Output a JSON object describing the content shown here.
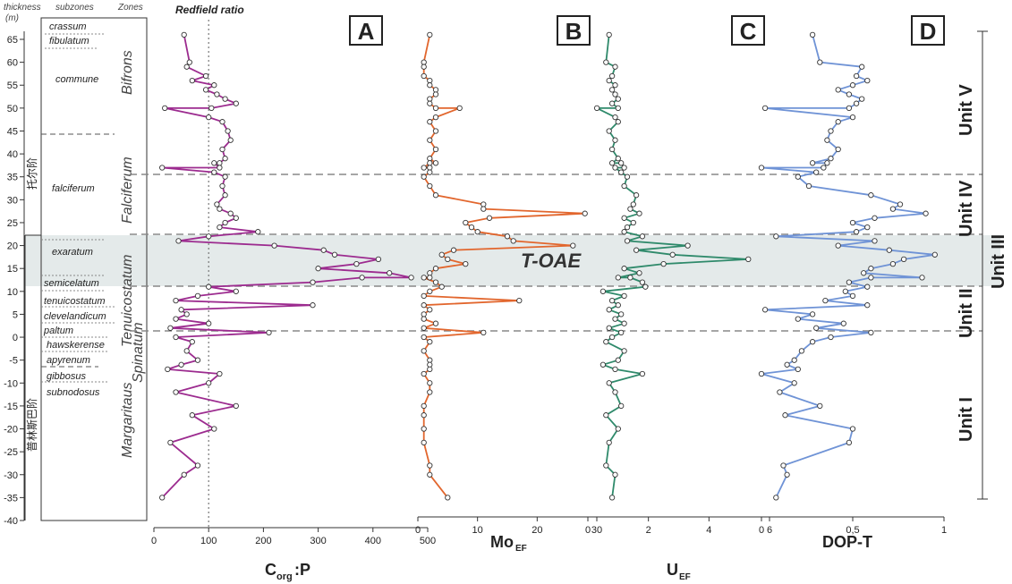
{
  "header": {
    "thickness": "thickness",
    "thickness_unit": "(m)",
    "subzones": "subzones",
    "zones": "Zones",
    "redfield": "Redfield ratio"
  },
  "stages": [
    {
      "label": "托尔阶"
    },
    {
      "label": "普林斯巴阶"
    }
  ],
  "zones": [
    {
      "label": "Bifrons"
    },
    {
      "label": "Falciferum"
    },
    {
      "label": "Tenuicostatum"
    },
    {
      "label": "Spinatum"
    },
    {
      "label": "Margaritaus"
    }
  ],
  "subzones": [
    {
      "label": "crassum"
    },
    {
      "label": "fibulatum"
    },
    {
      "label": "commune"
    },
    {
      "label": "falciferum"
    },
    {
      "label": "exaratum"
    },
    {
      "label": "semicelatum"
    },
    {
      "label": "tenuicostatum"
    },
    {
      "label": "clevelandicum"
    },
    {
      "label": "paltum"
    },
    {
      "label": "hawskerense"
    },
    {
      "label": "apyrenum"
    },
    {
      "label": "gibbosus"
    },
    {
      "label": "subnodosus"
    }
  ],
  "depth_ticks": [
    "65",
    "60",
    "55",
    "50",
    "45",
    "40",
    "35",
    "30",
    "25",
    "20",
    "15",
    "10",
    "5",
    "0",
    "-5",
    "-10",
    "-15",
    "-20",
    "-25",
    "-30",
    "-35",
    "-40"
  ],
  "toae_label": "T-OAE",
  "units": [
    {
      "label": "Unit V"
    },
    {
      "label": "Unit IV"
    },
    {
      "label": "Unit III"
    },
    {
      "label": "Unit II"
    },
    {
      "label": "Unit I"
    }
  ],
  "chart_data": [
    {
      "type": "line",
      "panel": "A",
      "xlabel": "Corg:P",
      "xlabel_main": "C",
      "xlabel_sub": "org",
      "xlabel_tail": ":P",
      "xticks": [
        "0",
        "100",
        "200",
        "300",
        "400",
        "500"
      ],
      "xlim": [
        0,
        500
      ],
      "ylim": [
        -40,
        68
      ],
      "reference_line": {
        "value": 100,
        "label": "Redfield ratio"
      },
      "color": "#9c2b8f",
      "x": [
        55,
        65,
        60,
        95,
        70,
        110,
        95,
        115,
        130,
        150,
        105,
        20,
        100,
        125,
        135,
        140,
        125,
        130,
        120,
        110,
        120,
        15,
        110,
        130,
        125,
        130,
        115,
        120,
        140,
        150,
        130,
        120,
        190,
        100,
        45,
        220,
        310,
        330,
        410,
        370,
        300,
        430,
        470,
        380,
        290,
        100,
        150,
        80,
        40,
        290,
        50,
        60,
        40,
        100,
        30,
        210,
        40,
        70,
        60,
        80,
        50,
        25,
        120,
        100,
        40,
        150,
        70,
        110,
        30,
        80,
        55,
        15
      ],
      "y": [
        66,
        60,
        59,
        57,
        56,
        55,
        54,
        53,
        52,
        51,
        50,
        50,
        48,
        47,
        45,
        43,
        41,
        39,
        38,
        38,
        37,
        37,
        36,
        35,
        33,
        31,
        29,
        28,
        27,
        26,
        25,
        24,
        23,
        22,
        21,
        20,
        19,
        18,
        17,
        16,
        15,
        14,
        13,
        13,
        12,
        11,
        10,
        9,
        8,
        7,
        6,
        5,
        4,
        3,
        2,
        1,
        0,
        -1,
        -3,
        -5,
        -6,
        -7,
        -8,
        -10,
        -12,
        -15,
        -17,
        -20,
        -23,
        -28,
        -30,
        -35
      ]
    },
    {
      "type": "line",
      "panel": "B",
      "xlabel": "MoEF",
      "xlabel_main": "Mo",
      "xlabel_sub": "EF",
      "xticks": [
        "0",
        "10",
        "20",
        "30"
      ],
      "xlim": [
        0,
        30
      ],
      "ylim": [
        -40,
        68
      ],
      "color": "#e2662d",
      "x": [
        2,
        1,
        1,
        1,
        2,
        2,
        3,
        3,
        2,
        2,
        3,
        7,
        3,
        2,
        3,
        2,
        3,
        2,
        3,
        2,
        1,
        2,
        2,
        1,
        2,
        3,
        11,
        11,
        28,
        12,
        8,
        9,
        10,
        15,
        16,
        26,
        6,
        4,
        5,
        8,
        3,
        2,
        2,
        1,
        3,
        4,
        2,
        1,
        17,
        1,
        2,
        1,
        1,
        3,
        1,
        11,
        1,
        2,
        1,
        2,
        2,
        2,
        1,
        2,
        2,
        1,
        1,
        1,
        1,
        2,
        2,
        5
      ],
      "y": [
        66,
        60,
        59,
        57,
        56,
        55,
        54,
        53,
        52,
        51,
        50,
        50,
        48,
        47,
        45,
        43,
        41,
        39,
        38,
        38,
        37,
        37,
        36,
        35,
        33,
        31,
        29,
        28,
        27,
        26,
        25,
        24,
        23,
        22,
        21,
        20,
        19,
        18,
        17,
        16,
        15,
        14,
        13,
        13,
        12,
        11,
        10,
        9,
        8,
        7,
        6,
        5,
        4,
        3,
        2,
        1,
        0,
        -1,
        -3,
        -5,
        -6,
        -7,
        -8,
        -10,
        -12,
        -15,
        -17,
        -20,
        -23,
        -28,
        -30,
        -35
      ]
    },
    {
      "type": "line",
      "panel": "C",
      "xlabel": "UEF",
      "xlabel_main": "U",
      "xlabel_sub": "EF",
      "xticks": [
        "0",
        "2",
        "4",
        "6"
      ],
      "xlim": [
        0,
        6
      ],
      "ylim": [
        -40,
        68
      ],
      "color": "#2f8a6b",
      "x": [
        0.7,
        0.6,
        0.9,
        0.8,
        0.7,
        0.9,
        0.8,
        0.9,
        1.0,
        0.8,
        1.0,
        0.3,
        0.9,
        1.0,
        0.7,
        0.9,
        0.8,
        1.0,
        0.8,
        1.1,
        1.2,
        0.9,
        1.1,
        1.3,
        1.2,
        1.6,
        1.5,
        1.4,
        1.7,
        1.2,
        1.5,
        1.3,
        1.2,
        1.8,
        1.3,
        3.3,
        1.6,
        2.8,
        5.3,
        2.5,
        1.2,
        1.7,
        1.0,
        1.4,
        1.8,
        1.9,
        0.5,
        1.2,
        0.8,
        1.0,
        0.7,
        1.1,
        0.9,
        1.2,
        0.7,
        1.1,
        0.8,
        0.6,
        1.2,
        1.0,
        0.5,
        0.9,
        1.8,
        0.7,
        0.9,
        1.1,
        0.6,
        1.0,
        0.7,
        0.6,
        0.9,
        0.8
      ],
      "y": [
        66,
        60,
        59,
        57,
        56,
        55,
        54,
        53,
        52,
        51,
        50,
        50,
        48,
        47,
        45,
        43,
        41,
        39,
        38,
        38,
        37,
        37,
        36,
        35,
        33,
        31,
        29,
        28,
        27,
        26,
        25,
        24,
        23,
        22,
        21,
        20,
        19,
        18,
        17,
        16,
        15,
        14,
        13,
        13,
        12,
        11,
        10,
        9,
        8,
        7,
        6,
        5,
        4,
        3,
        2,
        1,
        0,
        -1,
        -3,
        -5,
        -6,
        -7,
        -8,
        -10,
        -12,
        -15,
        -17,
        -20,
        -23,
        -28,
        -30,
        -35
      ]
    },
    {
      "type": "line",
      "panel": "D",
      "xlabel": "DOP-T",
      "xticks": [
        "0",
        "0,5",
        "1"
      ],
      "xlim": [
        0,
        1
      ],
      "ylim": [
        -40,
        68
      ],
      "color": "#6f93d6",
      "x": [
        0.28,
        0.32,
        0.55,
        0.52,
        0.58,
        0.5,
        0.42,
        0.48,
        0.55,
        0.52,
        0.48,
        0.02,
        0.5,
        0.42,
        0.38,
        0.36,
        0.42,
        0.38,
        0.28,
        0.36,
        0.34,
        0.0,
        0.3,
        0.2,
        0.26,
        0.6,
        0.76,
        0.72,
        0.9,
        0.62,
        0.5,
        0.58,
        0.52,
        0.08,
        0.62,
        0.42,
        0.7,
        0.95,
        0.78,
        0.72,
        0.6,
        0.56,
        0.88,
        0.6,
        0.48,
        0.58,
        0.46,
        0.5,
        0.35,
        0.58,
        0.02,
        0.28,
        0.2,
        0.45,
        0.3,
        0.6,
        0.38,
        0.28,
        0.22,
        0.18,
        0.14,
        0.2,
        0.0,
        0.18,
        0.1,
        0.32,
        0.13,
        0.5,
        0.48,
        0.12,
        0.14,
        0.08
      ],
      "y": [
        66,
        60,
        59,
        57,
        56,
        55,
        54,
        53,
        52,
        51,
        50,
        50,
        48,
        47,
        45,
        43,
        41,
        39,
        38,
        38,
        37,
        37,
        36,
        35,
        33,
        31,
        29,
        28,
        27,
        26,
        25,
        24,
        23,
        22,
        21,
        20,
        19,
        18,
        17,
        16,
        15,
        14,
        13,
        13,
        12,
        11,
        10,
        9,
        8,
        7,
        6,
        5,
        4,
        3,
        2,
        1,
        0,
        -1,
        -3,
        -5,
        -6,
        -7,
        -8,
        -10,
        -12,
        -15,
        -17,
        -20,
        -23,
        -28,
        -30,
        -35
      ]
    }
  ]
}
